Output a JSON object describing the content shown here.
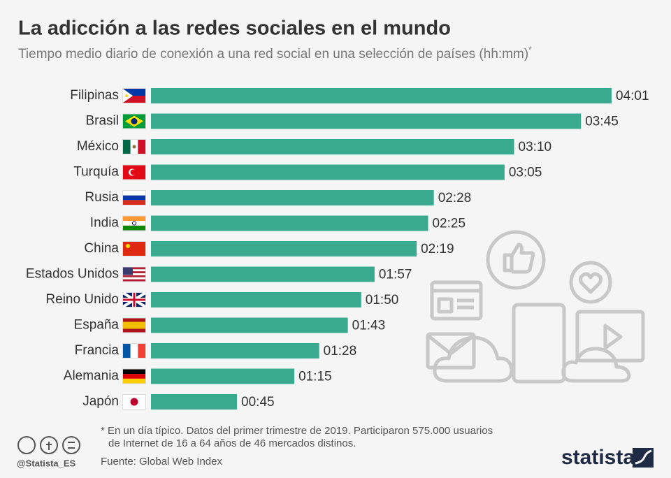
{
  "chart_data": {
    "type": "bar",
    "orientation": "horizontal",
    "title": "La adicción a las redes sociales en el mundo",
    "subtitle": "Tiempo medio diario de conexión a una red social en una selección de países (hh:mm)",
    "subtitle_mark": "*",
    "categories": [
      "Filipinas",
      "Brasil",
      "México",
      "Turquía",
      "Rusia",
      "India",
      "China",
      "Estados Unidos",
      "Reino Unido",
      "España",
      "Francia",
      "Alemania",
      "Japón"
    ],
    "values": [
      241,
      225,
      190,
      185,
      148,
      145,
      139,
      117,
      110,
      103,
      88,
      75,
      45
    ],
    "value_labels": [
      "04:01",
      "03:45",
      "03:10",
      "03:05",
      "02:28",
      "02:25",
      "02:19",
      "01:57",
      "01:50",
      "01:43",
      "01:28",
      "01:15",
      "00:45"
    ],
    "color": "#3aaa8f",
    "footnote": [
      "* En un día típico. Datos del primer trimestre de 2019. Participaron 575.000 usuarios",
      "de Internet de 16 a 64 años de 46 mercados distinos."
    ],
    "source": "Fuente: Global Web Index",
    "handle": "@Statista_ES",
    "brand": "statista"
  }
}
